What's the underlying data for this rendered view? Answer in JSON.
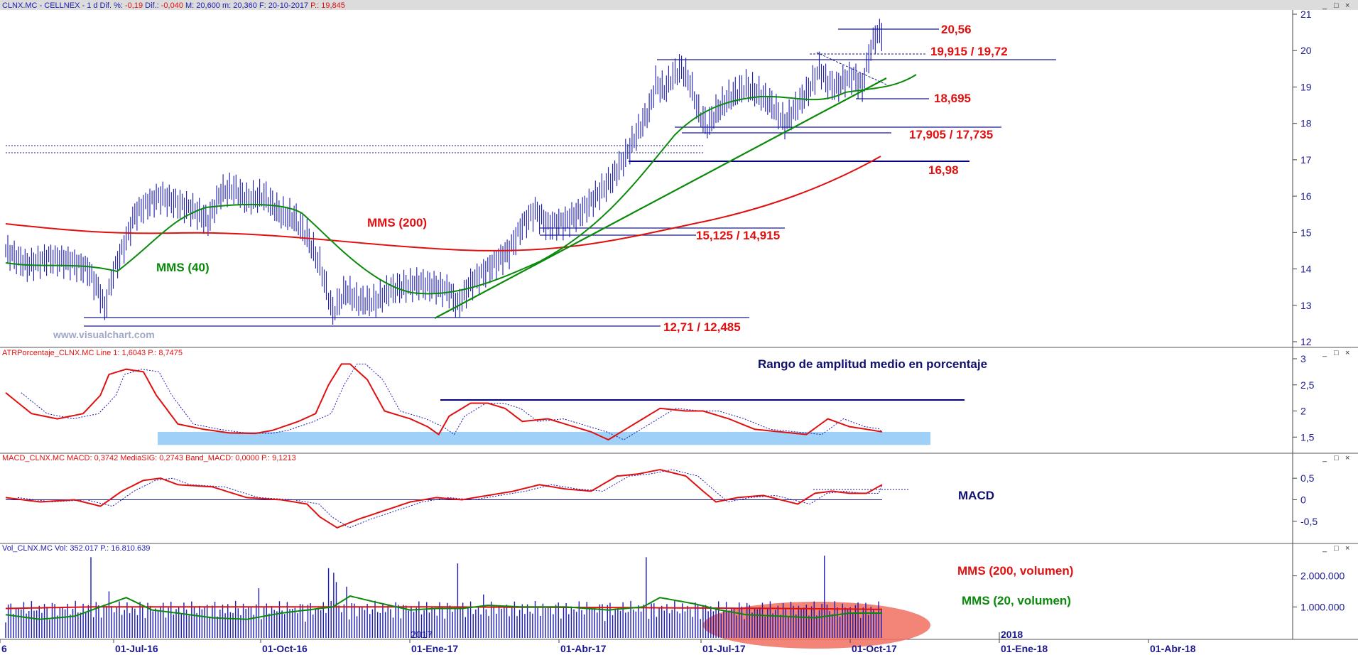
{
  "colors": {
    "price": "#1a1ab5",
    "ma200": "#e01010",
    "ma40": "#0a8a0a",
    "level": "#1a1a8a",
    "label_red": "#e01010",
    "label_green": "#0a8a0a",
    "title_navy": "#10106e",
    "axis": "#1b1b8f",
    "band": "#9fd0f8",
    "volume_highlight": "#f07060"
  },
  "window_controls": [
    "_",
    "□",
    "×"
  ],
  "chart_data": [
    {
      "type": "candlestick",
      "header": [
        {
          "text": "CLNX.MC - CELLNEX - 1 d  Dif. %: ",
          "color": "#1a1ab5"
        },
        {
          "text": "-0,19",
          "color": "#e01010"
        },
        {
          "text": "  Dif.: ",
          "color": "#1a1ab5"
        },
        {
          "text": "-0,040",
          "color": "#e01010"
        },
        {
          "text": "  M: 20,600  m: 20,360  F: 20-10-2017  ",
          "color": "#1a1ab5"
        },
        {
          "text": "P.: 19,845",
          "color": "#e01010"
        }
      ],
      "y_ticks": [
        "21",
        "20",
        "19",
        "18",
        "17",
        "16",
        "15",
        "14",
        "13",
        "12"
      ],
      "ylim": [
        12,
        21
      ],
      "watermark": "www.visualchart.com",
      "price_path_knots": [
        [
          0,
          14.5
        ],
        [
          25,
          14.1
        ],
        [
          50,
          14.3
        ],
        [
          75,
          14.2
        ],
        [
          95,
          14.0
        ],
        [
          110,
          13.3
        ],
        [
          115,
          12.9
        ],
        [
          125,
          13.9
        ],
        [
          140,
          14.8
        ],
        [
          150,
          15.5
        ],
        [
          165,
          15.8
        ],
        [
          180,
          16.0
        ],
        [
          200,
          15.8
        ],
        [
          220,
          15.6
        ],
        [
          235,
          15.3
        ],
        [
          250,
          16.1
        ],
        [
          265,
          16.2
        ],
        [
          280,
          15.9
        ],
        [
          300,
          16.0
        ],
        [
          320,
          15.5
        ],
        [
          335,
          15.4
        ],
        [
          350,
          14.9
        ],
        [
          365,
          14.1
        ],
        [
          380,
          12.8
        ],
        [
          395,
          13.4
        ],
        [
          410,
          13.1
        ],
        [
          430,
          13.1
        ],
        [
          445,
          13.4
        ],
        [
          460,
          13.5
        ],
        [
          480,
          13.6
        ],
        [
          500,
          13.5
        ],
        [
          515,
          13.4
        ],
        [
          525,
          13.0
        ],
        [
          540,
          13.6
        ],
        [
          555,
          13.9
        ],
        [
          570,
          14.2
        ],
        [
          585,
          14.5
        ],
        [
          600,
          15.2
        ],
        [
          615,
          15.6
        ],
        [
          630,
          15.2
        ],
        [
          650,
          15.3
        ],
        [
          670,
          15.6
        ],
        [
          690,
          16.1
        ],
        [
          705,
          16.5
        ],
        [
          720,
          17.1
        ],
        [
          735,
          17.8
        ],
        [
          748,
          18.4
        ],
        [
          755,
          19.1
        ],
        [
          765,
          18.9
        ],
        [
          775,
          19.3
        ],
        [
          785,
          19.5
        ],
        [
          795,
          19.1
        ],
        [
          805,
          18.3
        ],
        [
          815,
          17.9
        ],
        [
          825,
          18.3
        ],
        [
          840,
          18.7
        ],
        [
          860,
          19.0
        ],
        [
          875,
          18.8
        ],
        [
          890,
          18.5
        ],
        [
          905,
          18.0
        ],
        [
          920,
          18.5
        ],
        [
          935,
          19.0
        ],
        [
          945,
          19.5
        ],
        [
          955,
          19.1
        ],
        [
          965,
          19.0
        ],
        [
          975,
          19.2
        ],
        [
          985,
          19.3
        ],
        [
          995,
          19.0
        ],
        [
          1003,
          19.9
        ],
        [
          1010,
          20.4
        ],
        [
          1018,
          20.5
        ]
      ],
      "annotations": [
        {
          "text": "MMS (200)",
          "color": "#e01010"
        },
        {
          "text": "MMS (40)",
          "color": "#0a8a0a"
        },
        {
          "text": "20,56",
          "color": "#e01010"
        },
        {
          "text": "19,915 / 19,72",
          "color": "#e01010"
        },
        {
          "text": "18,695",
          "color": "#e01010"
        },
        {
          "text": "17,905 / 17,735",
          "color": "#e01010"
        },
        {
          "text": "16,98",
          "color": "#e01010"
        },
        {
          "text": "15,125 / 14,915",
          "color": "#e01010"
        },
        {
          "text": "12,71 / 12,485",
          "color": "#e01010"
        }
      ]
    },
    {
      "type": "line",
      "header": [
        {
          "text": "ATRPorcentaje_CLNX.MC  Line 1: 1,6043  P.: 8,7475",
          "color": "#e01010"
        }
      ],
      "title": "Rango de amplitud medio en porcentaje",
      "y_ticks": [
        "3",
        "2,5",
        "2",
        "1,5"
      ],
      "ylim": [
        1.3,
        3.0
      ],
      "series_knots": [
        [
          0,
          2.35
        ],
        [
          30,
          1.95
        ],
        [
          60,
          1.85
        ],
        [
          90,
          1.95
        ],
        [
          110,
          2.3
        ],
        [
          120,
          2.7
        ],
        [
          140,
          2.8
        ],
        [
          160,
          2.75
        ],
        [
          175,
          2.3
        ],
        [
          200,
          1.75
        ],
        [
          230,
          1.65
        ],
        [
          260,
          1.58
        ],
        [
          290,
          1.57
        ],
        [
          310,
          1.63
        ],
        [
          340,
          1.8
        ],
        [
          360,
          1.95
        ],
        [
          375,
          2.5
        ],
        [
          390,
          2.9
        ],
        [
          400,
          2.9
        ],
        [
          420,
          2.6
        ],
        [
          440,
          2.0
        ],
        [
          470,
          1.85
        ],
        [
          490,
          1.7
        ],
        [
          503,
          1.55
        ],
        [
          515,
          1.9
        ],
        [
          540,
          2.15
        ],
        [
          560,
          2.15
        ],
        [
          580,
          2.05
        ],
        [
          600,
          1.8
        ],
        [
          630,
          1.85
        ],
        [
          660,
          1.7
        ],
        [
          680,
          1.6
        ],
        [
          700,
          1.45
        ],
        [
          730,
          1.75
        ],
        [
          760,
          2.05
        ],
        [
          790,
          2.0
        ],
        [
          810,
          2.0
        ],
        [
          840,
          1.85
        ],
        [
          870,
          1.65
        ],
        [
          900,
          1.6
        ],
        [
          930,
          1.55
        ],
        [
          955,
          1.85
        ],
        [
          980,
          1.7
        ],
        [
          1000,
          1.65
        ],
        [
          1018,
          1.6
        ]
      ],
      "band": [
        1.35,
        1.6
      ]
    },
    {
      "type": "line",
      "header": [
        {
          "text": "MACD_CLNX.MC  MACD: 0,3742  MediaSIG: 0,2743  Band_MACD: 0,0000  P.: 9,1213",
          "color": "#e01010"
        }
      ],
      "title": "MACD",
      "y_ticks": [
        "0,5",
        "0",
        "-0,5"
      ],
      "ylim": [
        -0.9,
        0.8
      ],
      "series_knots": [
        [
          0,
          0.05
        ],
        [
          40,
          -0.05
        ],
        [
          80,
          0.0
        ],
        [
          110,
          -0.15
        ],
        [
          135,
          0.2
        ],
        [
          160,
          0.45
        ],
        [
          180,
          0.5
        ],
        [
          200,
          0.35
        ],
        [
          240,
          0.3
        ],
        [
          280,
          0.05
        ],
        [
          320,
          0.0
        ],
        [
          350,
          -0.1
        ],
        [
          365,
          -0.4
        ],
        [
          385,
          -0.65
        ],
        [
          410,
          -0.45
        ],
        [
          440,
          -0.25
        ],
        [
          470,
          -0.05
        ],
        [
          500,
          0.05
        ],
        [
          530,
          0.0
        ],
        [
          560,
          0.1
        ],
        [
          590,
          0.2
        ],
        [
          620,
          0.35
        ],
        [
          650,
          0.25
        ],
        [
          680,
          0.2
        ],
        [
          710,
          0.55
        ],
        [
          735,
          0.6
        ],
        [
          760,
          0.7
        ],
        [
          790,
          0.55
        ],
        [
          810,
          0.2
        ],
        [
          825,
          -0.05
        ],
        [
          850,
          0.05
        ],
        [
          880,
          0.1
        ],
        [
          900,
          0.0
        ],
        [
          920,
          -0.1
        ],
        [
          940,
          0.15
        ],
        [
          960,
          0.2
        ],
        [
          980,
          0.15
        ],
        [
          1000,
          0.15
        ],
        [
          1018,
          0.35
        ]
      ]
    },
    {
      "type": "bar",
      "header": [
        {
          "text": "Vol_CLNX.MC  Vol: 352.017  P.: 16.810.639",
          "color": "#1a1ab5"
        }
      ],
      "y_ticks": [
        "2.000.000",
        "1.000.000"
      ],
      "ylim": [
        0,
        2700000
      ],
      "annotations": [
        {
          "text": "MMS (200, volumen)",
          "color": "#e01010"
        },
        {
          "text": "MMS (20, volumen)",
          "color": "#0a8a0a"
        }
      ],
      "spikes": [
        [
          100,
          2600000
        ],
        [
          120,
          1500000
        ],
        [
          295,
          1600000
        ],
        [
          375,
          2250000
        ],
        [
          380,
          2100000
        ],
        [
          385,
          1800000
        ],
        [
          395,
          1650000
        ],
        [
          525,
          2400000
        ],
        [
          555,
          1400000
        ],
        [
          745,
          2600000
        ],
        [
          950,
          2650000
        ]
      ],
      "ma200_knots": [
        [
          0,
          950000
        ],
        [
          100,
          1000000
        ],
        [
          300,
          1000000
        ],
        [
          500,
          1000000
        ],
        [
          700,
          980000
        ],
        [
          900,
          950000
        ],
        [
          1018,
          920000
        ]
      ],
      "ma20_knots": [
        [
          0,
          750000
        ],
        [
          40,
          600000
        ],
        [
          80,
          700000
        ],
        [
          110,
          1000000
        ],
        [
          140,
          1300000
        ],
        [
          170,
          900000
        ],
        [
          200,
          800000
        ],
        [
          240,
          650000
        ],
        [
          280,
          600000
        ],
        [
          320,
          800000
        ],
        [
          350,
          900000
        ],
        [
          380,
          1000000
        ],
        [
          400,
          1350000
        ],
        [
          430,
          1150000
        ],
        [
          470,
          900000
        ],
        [
          500,
          950000
        ],
        [
          530,
          950000
        ],
        [
          560,
          1050000
        ],
        [
          600,
          1000000
        ],
        [
          650,
          1000000
        ],
        [
          700,
          900000
        ],
        [
          740,
          1000000
        ],
        [
          760,
          1300000
        ],
        [
          800,
          1100000
        ],
        [
          830,
          900000
        ],
        [
          860,
          750000
        ],
        [
          900,
          700000
        ],
        [
          940,
          650000
        ],
        [
          980,
          800000
        ],
        [
          1018,
          800000
        ]
      ]
    }
  ],
  "x_axis_labels": [
    "6",
    "01-Jul-16",
    "01-Oct-16",
    "01-Ene-17",
    "01-Abr-17",
    "01-Jul-17",
    "01-Oct-17",
    "01-Ene-18",
    "01-Abr-18"
  ],
  "x_axis_marker": "2018",
  "x_axis_faint": "2017"
}
